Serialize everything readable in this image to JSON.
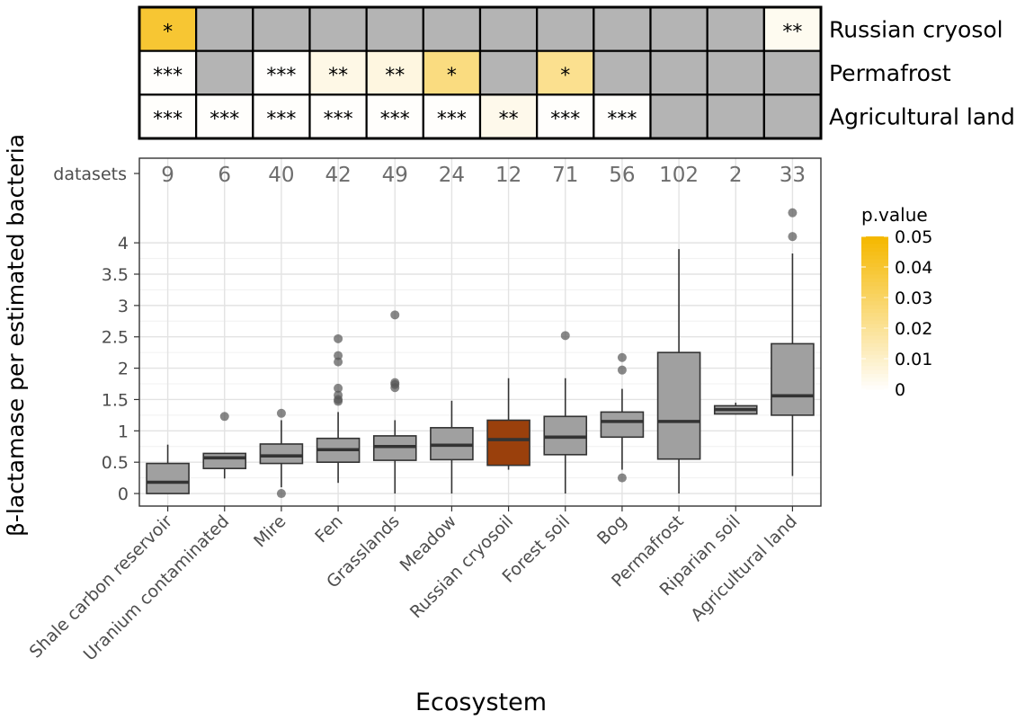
{
  "chart_data": {
    "type": "box",
    "xlabel": "Ecosystem",
    "ylabel": "β-lactamase per estimated bacteria",
    "ylim": [
      -0.2,
      5.35
    ],
    "yticks": [
      0,
      0.5,
      1,
      1.5,
      2,
      2.5,
      3,
      3.5,
      4
    ],
    "ytick_labels": [
      "0",
      "0.5",
      "1",
      "1.5",
      "2",
      "2.5",
      "3",
      "3.5",
      "4"
    ],
    "datasets_label": "datasets",
    "grid": true,
    "highlight_color": "#9a400c",
    "box_color": "#a0a0a0",
    "categories": [
      "Shale carbon reservoir",
      "Uranium contaminated",
      "Mire",
      "Fen",
      "Grasslands",
      "Meadow",
      "Russian cryosoil",
      "Forest soil",
      "Bog",
      "Permafrost",
      "Riparian soil",
      "Agricultural land"
    ],
    "datasets": [
      9,
      6,
      40,
      42,
      49,
      24,
      12,
      71,
      56,
      102,
      2,
      33
    ],
    "boxes": [
      {
        "min": 0,
        "q1": 0,
        "median": 0.18,
        "q3": 0.48,
        "max": 0.78,
        "outliers": []
      },
      {
        "min": 0.24,
        "q1": 0.4,
        "median": 0.57,
        "q3": 0.64,
        "max": 0.64,
        "outliers": [
          1.23
        ]
      },
      {
        "min": 0.1,
        "q1": 0.48,
        "median": 0.6,
        "q3": 0.79,
        "max": 1.17,
        "outliers": [
          1.28,
          0
        ]
      },
      {
        "min": 0.17,
        "q1": 0.5,
        "median": 0.7,
        "q3": 0.88,
        "max": 1.3,
        "outliers": [
          2.47,
          2.2,
          2.1,
          1.68,
          1.57,
          1.5,
          1.47
        ]
      },
      {
        "min": 0,
        "q1": 0.53,
        "median": 0.75,
        "q3": 0.92,
        "max": 1.17,
        "outliers": [
          2.85,
          1.77,
          1.74,
          1.69
        ]
      },
      {
        "min": 0,
        "q1": 0.54,
        "median": 0.77,
        "q3": 1.05,
        "max": 1.48,
        "outliers": []
      },
      {
        "min": 0.38,
        "q1": 0.45,
        "median": 0.86,
        "q3": 1.17,
        "max": 1.84,
        "outliers": []
      },
      {
        "min": 0,
        "q1": 0.62,
        "median": 0.9,
        "q3": 1.23,
        "max": 1.84,
        "outliers": [
          2.52
        ]
      },
      {
        "min": 0.38,
        "q1": 0.9,
        "median": 1.15,
        "q3": 1.3,
        "max": 1.67,
        "outliers": [
          2.17,
          1.97,
          0.25
        ]
      },
      {
        "min": 0,
        "q1": 0.55,
        "median": 1.15,
        "q3": 2.25,
        "max": 3.9,
        "outliers": []
      },
      {
        "min": 1.26,
        "q1": 1.27,
        "median": 1.34,
        "q3": 1.4,
        "max": 1.45,
        "outliers": []
      },
      {
        "min": 0.28,
        "q1": 1.25,
        "median": 1.56,
        "q3": 2.39,
        "max": 3.83,
        "outliers": [
          4.1,
          4.48
        ]
      }
    ],
    "highlight_index": 6,
    "heatmap": {
      "rows": [
        "Russian cryosol",
        "Permafrost",
        "Agricultural land"
      ],
      "cells": [
        [
          {
            "label": "*",
            "p": 0.04
          },
          {
            "label": "",
            "p": null
          },
          {
            "label": "",
            "p": null
          },
          {
            "label": "",
            "p": null
          },
          {
            "label": "",
            "p": null
          },
          {
            "label": "",
            "p": null
          },
          {
            "label": "",
            "p": null
          },
          {
            "label": "",
            "p": null
          },
          {
            "label": "",
            "p": null
          },
          {
            "label": "",
            "p": null
          },
          {
            "label": "",
            "p": null
          },
          {
            "label": "**",
            "p": 0.003
          }
        ],
        [
          {
            "label": "***",
            "p": 0.0005
          },
          {
            "label": "",
            "p": null
          },
          {
            "label": "***",
            "p": 0.0005
          },
          {
            "label": "**",
            "p": 0.005
          },
          {
            "label": "**",
            "p": 0.006
          },
          {
            "label": "*",
            "p": 0.025
          },
          {
            "label": "",
            "p": null
          },
          {
            "label": "*",
            "p": 0.022
          },
          {
            "label": "",
            "p": null
          },
          {
            "label": "",
            "p": null
          },
          {
            "label": "",
            "p": null
          },
          {
            "label": "",
            "p": null
          }
        ],
        [
          {
            "label": "***",
            "p": 0.0005
          },
          {
            "label": "***",
            "p": 0.0005
          },
          {
            "label": "***",
            "p": 0.0005
          },
          {
            "label": "***",
            "p": 0.0005
          },
          {
            "label": "***",
            "p": 0.0005
          },
          {
            "label": "***",
            "p": 0.0005
          },
          {
            "label": "**",
            "p": 0.004
          },
          {
            "label": "***",
            "p": 0.0005
          },
          {
            "label": "***",
            "p": 0.0005
          },
          {
            "label": "",
            "p": null
          },
          {
            "label": "",
            "p": null
          },
          {
            "label": "",
            "p": null
          }
        ]
      ],
      "na_color": "#b4b4b4",
      "low_color": "#ffffff",
      "high_color": "#f5b800"
    },
    "legend": {
      "title": "p.value",
      "ticks": [
        0,
        0.01,
        0.02,
        0.03,
        0.04,
        0.05
      ],
      "tick_labels": [
        "0",
        "0.01",
        "0.02",
        "0.03",
        "0.04",
        "0.05"
      ],
      "position": "right"
    }
  }
}
